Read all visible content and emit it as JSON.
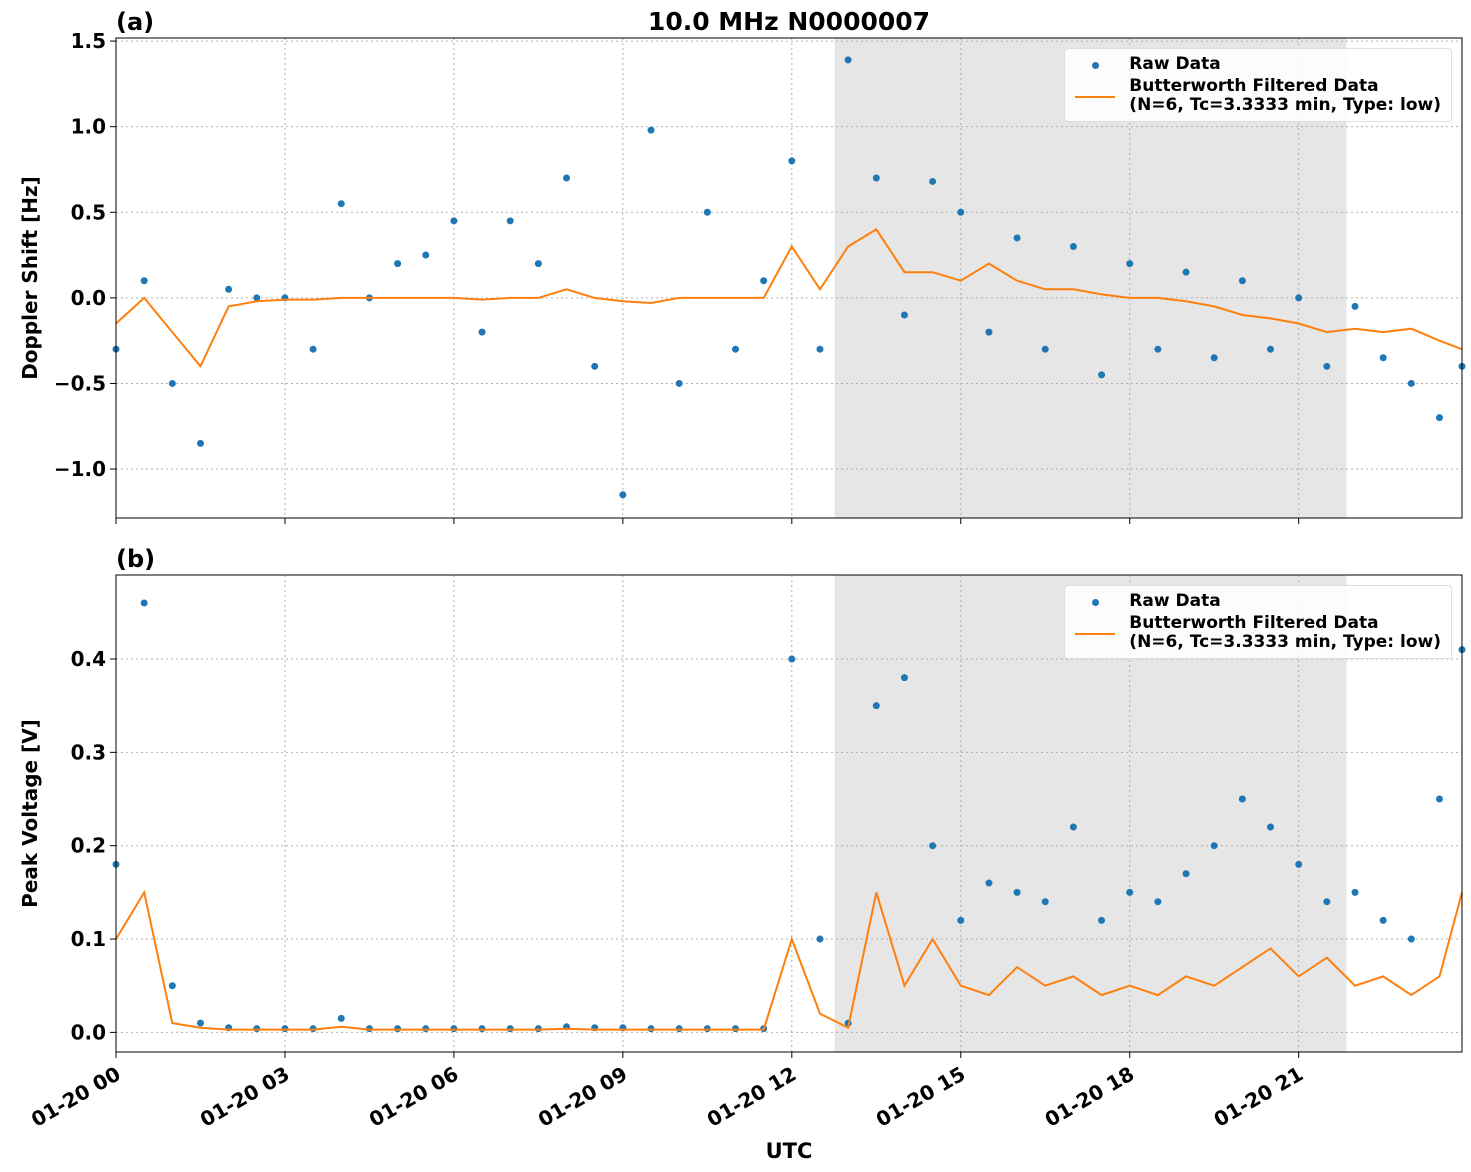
{
  "chart_data": [
    {
      "type": "line",
      "title": "10.0 MHz N0000007",
      "panel_label": "(a)",
      "ylabel": "Doppler Shift [Hz]",
      "xlim": [
        0,
        23.9
      ],
      "ylim": [
        -1.286,
        1.518
      ],
      "grid": true,
      "legend": "upper right",
      "shaded_span": [
        12.76,
        21.85
      ],
      "xticks": [
        0,
        3,
        6,
        9,
        12,
        15,
        18,
        21
      ],
      "yticks": [
        {
          "value": -1.0,
          "label": "−1.0"
        },
        {
          "value": -0.5,
          "label": "−0.5"
        },
        {
          "value": 0.0,
          "label": "0.0"
        },
        {
          "value": 0.5,
          "label": "0.5"
        },
        {
          "value": 1.0,
          "label": "1.0"
        },
        {
          "value": 1.5,
          "label": "1.5"
        }
      ],
      "x": [
        0,
        0.5,
        1,
        1.5,
        2,
        2.5,
        3,
        3.5,
        4,
        4.5,
        5,
        5.5,
        6,
        6.5,
        7,
        7.5,
        8,
        8.5,
        9,
        9.5,
        10,
        10.5,
        11,
        11.5,
        12,
        12.5,
        13,
        13.5,
        14,
        14.5,
        15,
        15.5,
        16,
        16.5,
        17,
        17.5,
        18,
        18.5,
        19,
        19.5,
        20,
        20.5,
        21,
        21.5,
        22,
        22.5,
        23,
        23.5,
        23.9
      ],
      "series": [
        {
          "name": "Raw Data",
          "mode": "marker",
          "color": "#1f77b4",
          "values": [
            -0.3,
            0.1,
            -0.5,
            -0.85,
            0.05,
            0.0,
            0.0,
            -0.3,
            0.55,
            0.0,
            0.2,
            0.25,
            0.45,
            -0.2,
            0.45,
            0.2,
            0.7,
            -0.4,
            -1.15,
            0.98,
            -0.5,
            0.5,
            -0.3,
            0.1,
            0.8,
            -0.3,
            1.39,
            0.7,
            -0.1,
            0.68,
            0.5,
            -0.2,
            0.35,
            -0.3,
            0.3,
            -0.45,
            0.2,
            -0.3,
            0.15,
            -0.35,
            0.1,
            -0.3,
            0.0,
            -0.4,
            -0.05,
            -0.35,
            -0.5,
            -0.7,
            -0.4
          ]
        },
        {
          "name": "Butterworth Filtered Data\n(N=6, Tc=3.3333 min, Type: low)",
          "mode": "line",
          "color": "#ff7f0e",
          "values": [
            -0.15,
            0.0,
            -0.2,
            -0.4,
            -0.05,
            -0.02,
            -0.01,
            -0.01,
            0.0,
            0.0,
            0.0,
            0.0,
            0.0,
            -0.01,
            0.0,
            0.0,
            0.05,
            0.0,
            -0.02,
            -0.03,
            0.0,
            0.0,
            0.0,
            0.0,
            0.3,
            0.05,
            0.3,
            0.4,
            0.15,
            0.15,
            0.1,
            0.2,
            0.1,
            0.05,
            0.05,
            0.02,
            0.0,
            0.0,
            -0.02,
            -0.05,
            -0.1,
            -0.12,
            -0.15,
            -0.2,
            -0.18,
            -0.2,
            -0.18,
            -0.25,
            -0.3
          ]
        }
      ]
    },
    {
      "type": "line",
      "panel_label": "(b)",
      "ylabel": "Peak Voltage [V]",
      "xlabel": "UTC",
      "xlim": [
        0,
        23.9
      ],
      "ylim": [
        -0.021,
        0.49
      ],
      "grid": true,
      "legend": "upper right",
      "shaded_span": [
        12.76,
        21.85
      ],
      "xticks": [
        {
          "value": 0,
          "label": "01-20 00"
        },
        {
          "value": 3,
          "label": "01-20 03"
        },
        {
          "value": 6,
          "label": "01-20 06"
        },
        {
          "value": 9,
          "label": "01-20 09"
        },
        {
          "value": 12,
          "label": "01-20 12"
        },
        {
          "value": 15,
          "label": "01-20 15"
        },
        {
          "value": 18,
          "label": "01-20 18"
        },
        {
          "value": 21,
          "label": "01-20 21"
        }
      ],
      "yticks": [
        {
          "value": 0.0,
          "label": "0.0"
        },
        {
          "value": 0.1,
          "label": "0.1"
        },
        {
          "value": 0.2,
          "label": "0.2"
        },
        {
          "value": 0.3,
          "label": "0.3"
        },
        {
          "value": 0.4,
          "label": "0.4"
        }
      ],
      "x": [
        0,
        0.5,
        1,
        1.5,
        2,
        2.5,
        3,
        3.5,
        4,
        4.5,
        5,
        5.5,
        6,
        6.5,
        7,
        7.5,
        8,
        8.5,
        9,
        9.5,
        10,
        10.5,
        11,
        11.5,
        12,
        12.5,
        13,
        13.5,
        14,
        14.5,
        15,
        15.5,
        16,
        16.5,
        17,
        17.5,
        18,
        18.5,
        19,
        19.5,
        20,
        20.5,
        21,
        21.5,
        22,
        22.5,
        23,
        23.5,
        23.9
      ],
      "series": [
        {
          "name": "Raw Data",
          "mode": "marker",
          "color": "#1f77b4",
          "values": [
            0.18,
            0.46,
            0.05,
            0.01,
            0.005,
            0.004,
            0.004,
            0.004,
            0.015,
            0.004,
            0.004,
            0.004,
            0.004,
            0.004,
            0.004,
            0.004,
            0.006,
            0.005,
            0.005,
            0.004,
            0.004,
            0.004,
            0.004,
            0.004,
            0.4,
            0.1,
            0.01,
            0.35,
            0.38,
            0.2,
            0.12,
            0.16,
            0.15,
            0.14,
            0.22,
            0.12,
            0.15,
            0.14,
            0.17,
            0.2,
            0.25,
            0.22,
            0.18,
            0.14,
            0.15,
            0.12,
            0.1,
            0.25,
            0.41
          ]
        },
        {
          "name": "Butterworth Filtered Data\n(N=6, Tc=3.3333 min, Type: low)",
          "mode": "line",
          "color": "#ff7f0e",
          "values": [
            0.1,
            0.15,
            0.01,
            0.005,
            0.003,
            0.003,
            0.003,
            0.003,
            0.006,
            0.003,
            0.003,
            0.003,
            0.003,
            0.003,
            0.003,
            0.003,
            0.004,
            0.003,
            0.003,
            0.003,
            0.003,
            0.003,
            0.003,
            0.003,
            0.1,
            0.02,
            0.005,
            0.15,
            0.05,
            0.1,
            0.05,
            0.04,
            0.07,
            0.05,
            0.06,
            0.04,
            0.05,
            0.04,
            0.06,
            0.05,
            0.07,
            0.09,
            0.06,
            0.08,
            0.05,
            0.06,
            0.04,
            0.06,
            0.15
          ]
        }
      ]
    }
  ]
}
